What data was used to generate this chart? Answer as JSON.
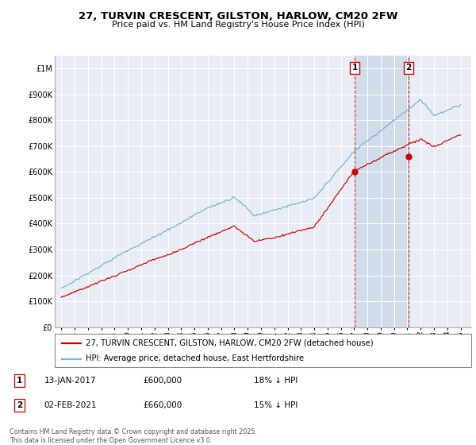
{
  "title": "27, TURVIN CRESCENT, GILSTON, HARLOW, CM20 2FW",
  "subtitle": "Price paid vs. HM Land Registry's House Price Index (HPI)",
  "legend_line1": "27, TURVIN CRESCENT, GILSTON, HARLOW, CM20 2FW (detached house)",
  "legend_line2": "HPI: Average price, detached house, East Hertfordshire",
  "footnote1": "Contains HM Land Registry data © Crown copyright and database right 2025.",
  "footnote2": "This data is licensed under the Open Government Licence v3.0.",
  "sale1_date": "13-JAN-2017",
  "sale1_price": "£600,000",
  "sale1_hpi": "18% ↓ HPI",
  "sale2_date": "02-FEB-2021",
  "sale2_price": "£660,000",
  "sale2_hpi": "15% ↓ HPI",
  "sale1_x": 2017.04,
  "sale1_y": 600000,
  "sale2_x": 2021.1,
  "sale2_y": 660000,
  "hpi_color": "#7ab0d4",
  "price_color": "#cc0000",
  "vline_color": "#cc0000",
  "bg_color": "#e8edf5",
  "highlight_color": "#d0dcea",
  "grid_color": "#ffffff",
  "ylim": [
    0,
    1050000
  ],
  "xlim_start": 1994.5,
  "xlim_end": 2025.8,
  "yticks": [
    0,
    100000,
    200000,
    300000,
    400000,
    500000,
    600000,
    700000,
    800000,
    900000,
    1000000
  ],
  "ytick_labels": [
    "£0",
    "£100K",
    "£200K",
    "£300K",
    "£400K",
    "£500K",
    "£600K",
    "£700K",
    "£800K",
    "£900K",
    "£1M"
  ],
  "xticks": [
    1995,
    1996,
    1997,
    1998,
    1999,
    2000,
    2001,
    2002,
    2003,
    2004,
    2005,
    2006,
    2007,
    2008,
    2009,
    2010,
    2011,
    2012,
    2013,
    2014,
    2015,
    2016,
    2017,
    2018,
    2019,
    2020,
    2021,
    2022,
    2023,
    2024,
    2025
  ]
}
